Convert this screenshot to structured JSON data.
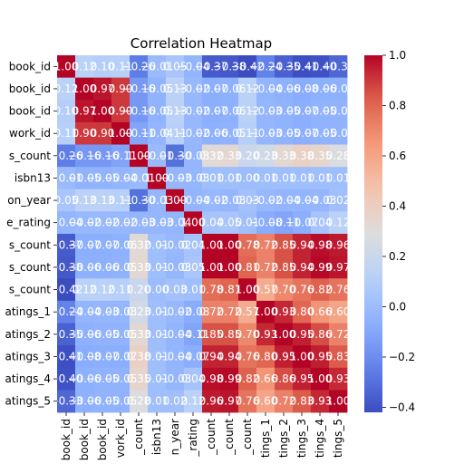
{
  "chart_data": {
    "type": "heatmap",
    "title": "Correlation Heatmap",
    "xlabel": "",
    "ylabel": "",
    "row_labels": [
      "book_id",
      "book_id",
      "book_id",
      "work_id",
      "s_count",
      "isbn13",
      "on_year",
      "e_rating",
      "s_count",
      "s_count",
      "s_count",
      "atings_1",
      "atings_2",
      "atings_3",
      "atings_4",
      "atings_5"
    ],
    "col_labels": [
      "book_id",
      "book_id",
      "book_id",
      "vork_id",
      "_count",
      "isbn13",
      "n_year",
      "_rating",
      "_count",
      "_count",
      "_count",
      "tings_1",
      "tings_2",
      "tings_3",
      "tings_4",
      "tings_5"
    ],
    "values": [
      [
        1.0,
        0.12,
        0.1,
        0.11,
        -0.26,
        -0.01,
        0.05,
        -0.04,
        -0.37,
        -0.38,
        -0.42,
        -0.24,
        -0.35,
        -0.41,
        -0.4,
        -0.33
      ],
      [
        0.12,
        1.0,
        0.97,
        0.9,
        -0.16,
        -0.05,
        0.13,
        -0.02,
        -0.07,
        -0.06,
        0.12,
        -0.04,
        -0.06,
        -0.08,
        -0.06,
        -0.06
      ],
      [
        0.1,
        0.97,
        1.0,
        0.9,
        -0.16,
        -0.05,
        0.13,
        -0.02,
        -0.07,
        -0.06,
        0.12,
        -0.03,
        -0.05,
        -0.07,
        -0.05,
        -0.05
      ],
      [
        0.11,
        0.9,
        0.9,
        1.0,
        -0.11,
        -0.04,
        0.11,
        -0.02,
        -0.06,
        -0.05,
        0.11,
        -0.03,
        -0.05,
        -0.07,
        -0.05,
        -0.05
      ],
      [
        -0.26,
        -0.16,
        -0.16,
        -0.11,
        1.0,
        -0.01,
        -0.3,
        -0.03,
        0.32,
        0.33,
        0.2,
        0.23,
        0.33,
        0.38,
        0.35,
        0.28
      ],
      [
        -0.01,
        -0.05,
        -0.05,
        -0.04,
        -0.01,
        1.0,
        -0.03,
        -0.03,
        0.01,
        0.01,
        0.0,
        0.01,
        0.01,
        0.01,
        0.01,
        0.01
      ],
      [
        0.05,
        0.13,
        0.13,
        0.11,
        -0.3,
        -0.03,
        1.0,
        -0.04,
        -0.02,
        -0.03,
        0.03,
        -0.02,
        -0.04,
        -0.04,
        -0.03,
        0.02
      ],
      [
        -0.04,
        -0.02,
        -0.02,
        -0.02,
        -0.03,
        -0.03,
        -0.04,
        1.0,
        0.04,
        0.05,
        0.01,
        -0.08,
        -0.11,
        -0.07,
        0.04,
        0.12
      ],
      [
        -0.37,
        -0.07,
        -0.07,
        -0.06,
        0.32,
        0.01,
        -0.02,
        0.04,
        1.0,
        1.0,
        0.78,
        0.72,
        0.85,
        0.94,
        0.98,
        0.96
      ],
      [
        -0.38,
        -0.06,
        -0.06,
        -0.05,
        0.33,
        0.01,
        -0.03,
        0.05,
        1.0,
        1.0,
        0.81,
        0.72,
        0.85,
        0.94,
        0.99,
        0.97
      ],
      [
        -0.42,
        0.12,
        0.12,
        0.11,
        0.2,
        0.0,
        0.03,
        0.01,
        0.78,
        0.81,
        1.0,
        0.57,
        0.7,
        0.76,
        0.82,
        0.76
      ],
      [
        -0.24,
        -0.04,
        -0.03,
        -0.03,
        0.23,
        0.01,
        -0.02,
        -0.08,
        0.72,
        0.72,
        0.57,
        1.0,
        0.93,
        0.8,
        0.66,
        0.6
      ],
      [
        -0.35,
        -0.06,
        -0.05,
        -0.05,
        0.33,
        0.01,
        -0.04,
        -0.11,
        0.85,
        0.85,
        0.7,
        0.93,
        1.0,
        0.95,
        0.86,
        0.72
      ],
      [
        -0.41,
        -0.08,
        -0.07,
        -0.07,
        0.38,
        0.01,
        -0.04,
        -0.07,
        0.94,
        0.94,
        0.76,
        0.8,
        0.95,
        1.0,
        0.95,
        0.83
      ],
      [
        -0.4,
        -0.06,
        -0.05,
        -0.05,
        0.35,
        0.01,
        -0.03,
        0.04,
        0.98,
        0.99,
        0.82,
        0.66,
        0.86,
        0.95,
        1.0,
        0.93
      ],
      [
        -0.33,
        -0.06,
        -0.05,
        -0.05,
        0.28,
        0.01,
        0.02,
        0.12,
        0.96,
        0.97,
        0.76,
        0.6,
        0.72,
        0.83,
        0.93,
        1.0
      ]
    ],
    "colormap": "coolwarm",
    "vmin": -0.42,
    "vmax": 1.0,
    "colorbar_ticks": [
      1.0,
      0.8,
      0.6,
      0.4,
      0.2,
      0.0,
      -0.2,
      -0.4
    ],
    "colorbar_tick_labels": [
      "1.0",
      "0.8",
      "0.6",
      "0.4",
      "0.2",
      "0.0",
      "−0.2",
      "−0.4"
    ],
    "annotated": true,
    "grid": false
  }
}
